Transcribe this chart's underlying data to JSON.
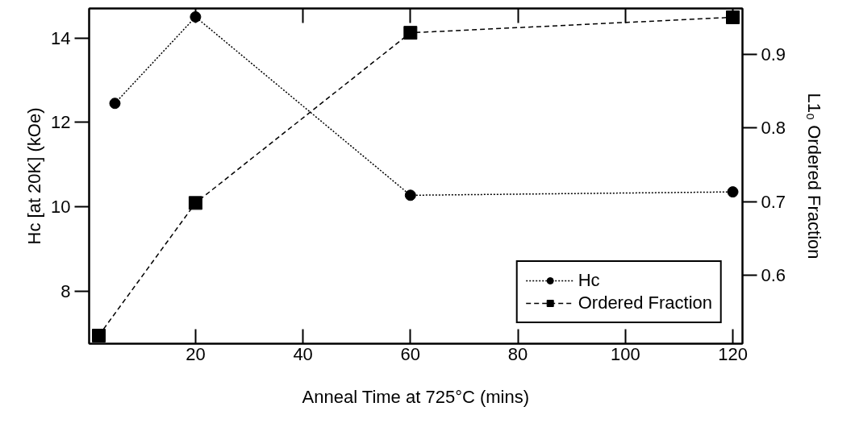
{
  "chart_data": {
    "type": "line",
    "xlabel": "Anneal Time at 725°C (mins)",
    "ylabel": "Hc [at 20K] (kOe)",
    "y2label": "L1₀ Ordered Fraction",
    "xlim": [
      0.2,
      121.8
    ],
    "xticks": [
      20,
      40,
      60,
      80,
      100,
      120
    ],
    "ylim": [
      6.75,
      14.7
    ],
    "yticks": [
      8,
      10,
      12,
      14
    ],
    "y2lim": [
      0.507,
      0.962
    ],
    "y2ticks": [
      0.6,
      0.7,
      0.8,
      0.9
    ],
    "series": [
      {
        "name": "Hc",
        "color": "#000000",
        "x": [
          5,
          20,
          60,
          120
        ],
        "values": [
          12.45,
          14.5,
          10.27,
          10.35
        ],
        "marker": "circle",
        "line_style": "dotted"
      },
      {
        "name": "Ordered Fraction",
        "color": "#000000",
        "x": [
          2,
          20,
          60,
          120
        ],
        "values": [
          0.518,
          0.698,
          0.929,
          0.95
        ],
        "marker": "square",
        "line_style": "dashed",
        "axis": "y2"
      }
    ],
    "legend": "bottom right",
    "grid": false
  }
}
